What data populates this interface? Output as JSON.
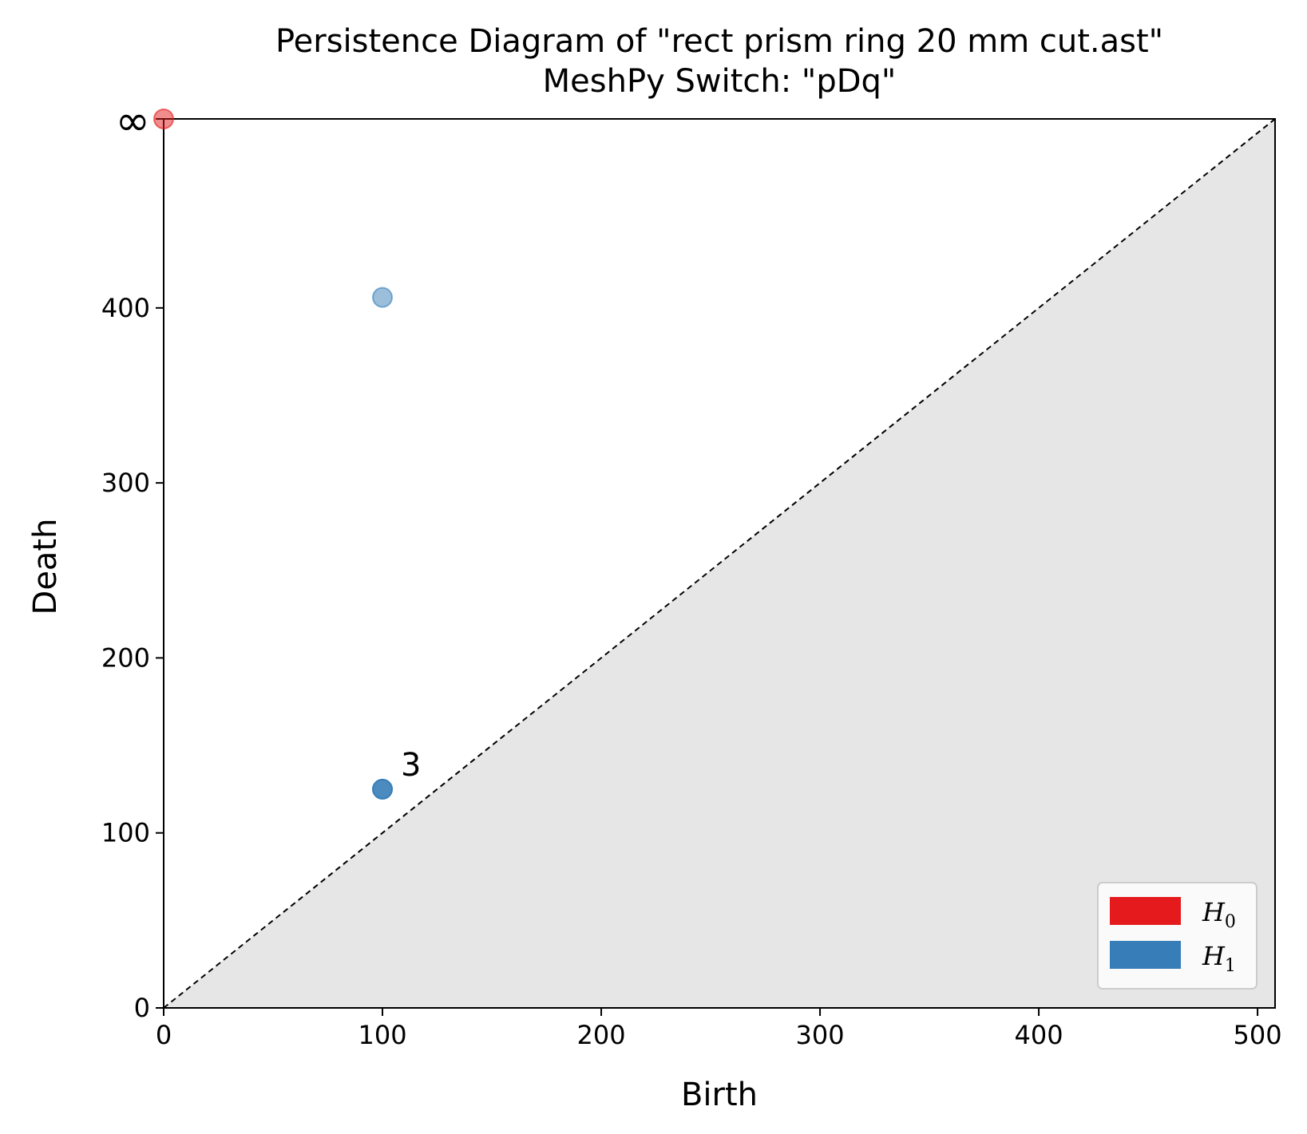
{
  "chart_data": {
    "type": "scatter",
    "title": "Persistence Diagram of \"rect prism ring 20 mm cut.ast\"",
    "subtitle": "MeshPy Switch: \"pDq\"",
    "xlabel": "Birth",
    "ylabel": "Death",
    "xlim": [
      0,
      508
    ],
    "ylim": [
      0,
      508
    ],
    "x_ticks": [
      "0",
      "100",
      "200",
      "300",
      "400",
      "500"
    ],
    "y_ticks": [
      "0",
      "100",
      "200",
      "300",
      "400"
    ],
    "infinity_label": "∞",
    "grid": false,
    "diagonal": "dashed y = x",
    "shaded_region": "below diagonal",
    "legend_position": "lower-right",
    "series": [
      {
        "name": "H0",
        "label_main": "H",
        "label_sub": "0",
        "color": "#e41a1c",
        "points": [
          {
            "x": 0,
            "y": "inf",
            "opacity": 0.5
          }
        ]
      },
      {
        "name": "H1",
        "label_main": "H",
        "label_sub": "1",
        "color": "#377eb8",
        "points": [
          {
            "x": 100,
            "y": 406,
            "opacity": 0.5
          },
          {
            "x": 100,
            "y": 125,
            "opacity": 0.9,
            "multiplicity": "3"
          }
        ]
      }
    ]
  }
}
